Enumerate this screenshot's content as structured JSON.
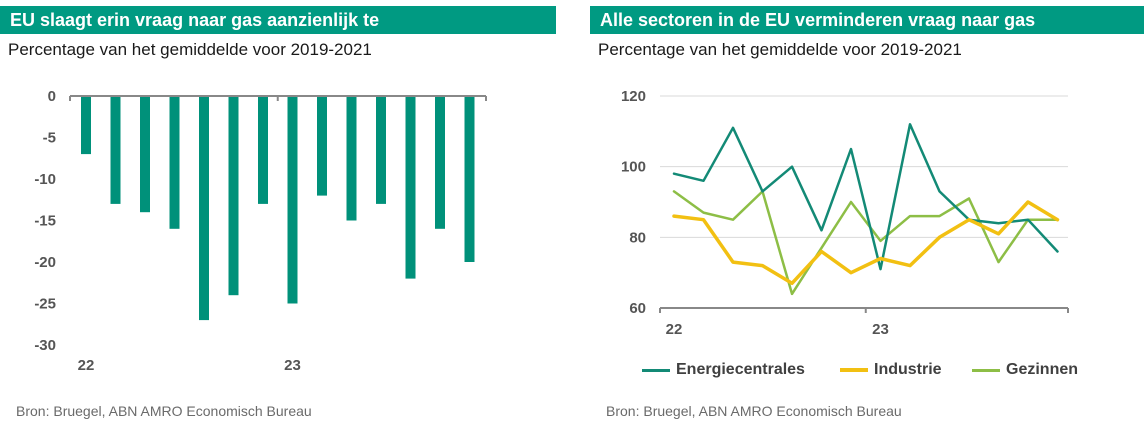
{
  "left": {
    "title": "EU slaagt erin vraag naar gas aanzienlijk te",
    "subtitle": "Percentage van het gemiddelde voor 2019-2021",
    "source": "Bron: Bruegel, ABN AMRO Economisch Bureau"
  },
  "right": {
    "title": "Alle sectoren in de EU verminderen vraag naar gas",
    "subtitle": "Percentage van het gemiddelde voor 2019-2021",
    "source": "Bron: Bruegel, ABN AMRO Economisch Bureau"
  },
  "colors": {
    "teal": "#00917A",
    "energie": "#138A76",
    "industrie": "#F2C012",
    "gezinnen": "#8DBE46",
    "axis": "#888888",
    "grid": "#d9d9d9"
  },
  "chart_data": [
    {
      "type": "bar",
      "title": "EU slaagt erin vraag naar gas aanzienlijk te",
      "subtitle": "Percentage van het gemiddelde voor 2019-2021",
      "x_tick_labels": [
        "22",
        "23"
      ],
      "values": [
        -7,
        -13,
        -14,
        -16,
        -27,
        -24,
        -13,
        -25,
        -12,
        -15,
        -13,
        -22,
        -16,
        -20
      ],
      "y_ticks": [
        0,
        -5,
        -10,
        -15,
        -20,
        -25,
        -30
      ],
      "ylim": [
        -30,
        0
      ],
      "grid": false
    },
    {
      "type": "line",
      "title": "Alle sectoren in de EU verminderen vraag naar gas",
      "subtitle": "Percentage van het gemiddelde voor 2019-2021",
      "x_tick_labels": [
        "22",
        "23"
      ],
      "y_ticks": [
        60,
        80,
        100,
        120
      ],
      "ylim": [
        60,
        120
      ],
      "grid": true,
      "legend_position": "bottom",
      "series": [
        {
          "name": "Energiecentrales",
          "values": [
            98,
            96,
            111,
            93,
            100,
            82,
            105,
            71,
            112,
            93,
            85,
            84,
            85,
            76
          ]
        },
        {
          "name": "Industrie",
          "values": [
            86,
            85,
            73,
            72,
            67,
            76,
            70,
            74,
            72,
            80,
            85,
            81,
            90,
            85
          ]
        },
        {
          "name": "Gezinnen",
          "values": [
            93,
            87,
            85,
            93,
            64,
            77,
            90,
            79,
            86,
            86,
            91,
            73,
            85,
            85
          ]
        }
      ]
    }
  ]
}
